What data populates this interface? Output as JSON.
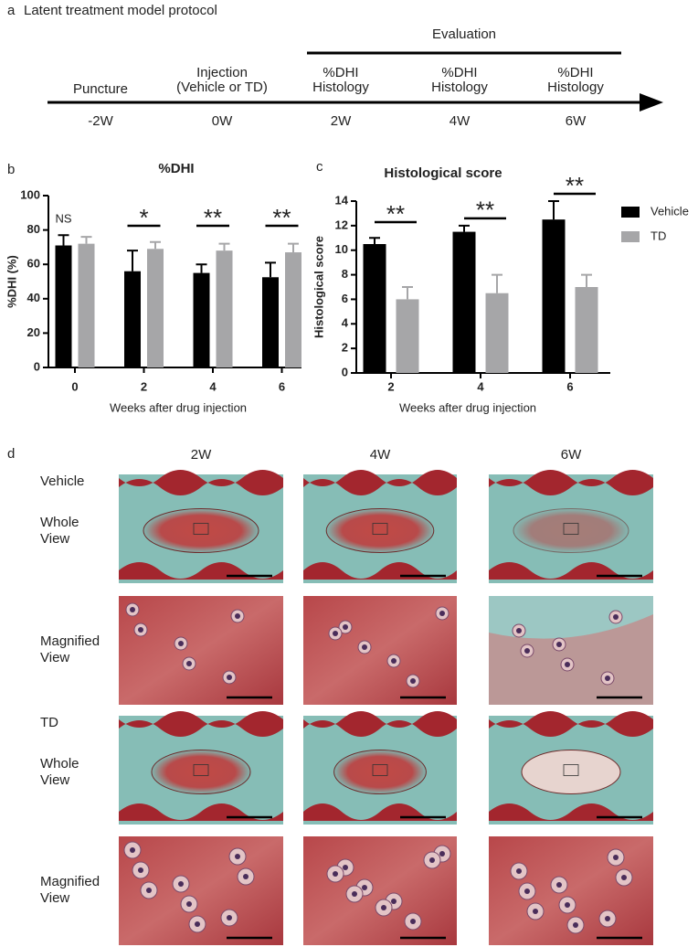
{
  "panel_a": {
    "label": "a",
    "title": "Latent treatment model protocol",
    "evaluation": "Evaluation",
    "events": [
      {
        "lines": [
          "Puncture"
        ],
        "time": "-2W"
      },
      {
        "lines": [
          "Injection",
          "(Vehicle or TD)"
        ],
        "time": "0W"
      },
      {
        "lines": [
          "%DHI",
          "Histology"
        ],
        "time": "2W"
      },
      {
        "lines": [
          "%DHI",
          "Histology"
        ],
        "time": "4W"
      },
      {
        "lines": [
          "%DHI",
          "Histology"
        ],
        "time": "6W"
      }
    ]
  },
  "chart_data": [
    {
      "type": "bar",
      "label": "b",
      "title": "%DHI",
      "ylabel": "%DHI (%)",
      "xlabel": "Weeks after drug injection",
      "categories": [
        "0",
        "2",
        "4",
        "6"
      ],
      "series": [
        {
          "name": "Vehicle",
          "color": "#000000",
          "values": [
            71,
            56,
            55,
            52.5
          ],
          "errors": [
            6,
            12,
            5,
            8.5
          ]
        },
        {
          "name": "TD",
          "color": "#a6a6a8",
          "values": [
            72,
            69,
            68,
            67
          ],
          "errors": [
            4,
            4,
            4,
            5
          ]
        }
      ],
      "significance": [
        "NS",
        "*",
        "**",
        "**"
      ],
      "ylim": [
        0,
        100
      ],
      "yticks": [
        0,
        20,
        40,
        60,
        80,
        100
      ]
    },
    {
      "type": "bar",
      "label": "c",
      "title": "Histological score",
      "ylabel": "Histological score",
      "xlabel": "Weeks after drug injection",
      "categories": [
        "2",
        "4",
        "6"
      ],
      "series": [
        {
          "name": "Vehicle",
          "color": "#000000",
          "values": [
            10.5,
            11.5,
            12.5
          ],
          "errors": [
            0.5,
            0.5,
            1.5
          ]
        },
        {
          "name": "TD",
          "color": "#a6a6a8",
          "values": [
            6,
            6.5,
            7
          ],
          "errors": [
            1,
            1.5,
            1
          ]
        }
      ],
      "significance": [
        "**",
        "**",
        "**"
      ],
      "ylim": [
        0,
        14
      ],
      "yticks": [
        0,
        2,
        4,
        6,
        8,
        10,
        12,
        14
      ],
      "legend": "right"
    }
  ],
  "panel_d": {
    "label": "d",
    "columns": [
      "2W",
      "4W",
      "6W"
    ],
    "groups": [
      {
        "name": "Vehicle",
        "rows": [
          [
            "Whole",
            "View"
          ],
          [
            "Magnified",
            "View"
          ]
        ]
      },
      {
        "name": "TD",
        "rows": [
          [
            "Whole",
            "View"
          ],
          [
            "Magnified",
            "View"
          ]
        ]
      }
    ]
  }
}
